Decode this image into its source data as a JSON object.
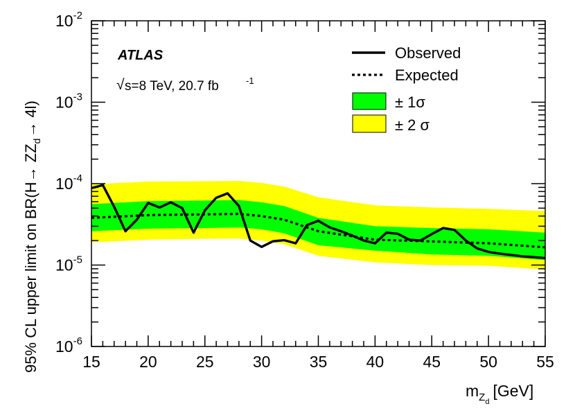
{
  "chart_data": {
    "type": "line",
    "experiment": "ATLAS",
    "energy_label": "s=8 TeV, 20.7 fb",
    "energy_label_exponent": "-1",
    "xlabel": "m",
    "xlabel_sub": "Z",
    "xlabel_subsub": "d",
    "xlabel_unit": "[GeV]",
    "ylabel": "95% CL upper limit on BR(H→ ZZ",
    "ylabel_sub": "d",
    "ylabel_tail": "→ 4l)",
    "xlim": [
      15,
      55
    ],
    "ylim": [
      1e-06,
      0.01
    ],
    "yscale": "log",
    "xticks": [
      "15",
      "20",
      "25",
      "30",
      "35",
      "40",
      "45",
      "50",
      "55"
    ],
    "yticks": [
      {
        "base": "10",
        "exp": "-6"
      },
      {
        "base": "10",
        "exp": "-5"
      },
      {
        "base": "10",
        "exp": "-4"
      },
      {
        "base": "10",
        "exp": "-3"
      },
      {
        "base": "10",
        "exp": "-2"
      }
    ],
    "legend": {
      "position": "top-right",
      "observed": "Observed",
      "expected": "Expected",
      "sigma1": "± 1σ",
      "sigma2": "± 2 σ"
    },
    "colors": {
      "sigma1": "#00ff00",
      "sigma2": "#ffff00",
      "line": "#000000"
    },
    "series": [
      {
        "name": "Observed",
        "x": [
          15,
          16,
          17,
          18,
          19,
          20,
          21,
          22,
          23,
          24,
          25,
          26,
          27,
          28,
          29,
          30,
          31,
          32,
          33,
          34,
          35,
          36,
          37,
          38,
          39,
          40,
          41,
          42,
          43,
          44,
          45,
          46,
          47,
          48,
          49,
          50,
          51,
          52,
          53,
          54,
          55
        ],
        "values": [
          8.8e-05,
          9.6e-05,
          5.2e-05,
          2.6e-05,
          3.6e-05,
          5.8e-05,
          5.1e-05,
          5.9e-05,
          5e-05,
          2.5e-05,
          4.7e-05,
          6.7e-05,
          7.6e-05,
          5.3e-05,
          2e-05,
          1.67e-05,
          1.96e-05,
          2.02e-05,
          1.85e-05,
          3.1e-05,
          3.5e-05,
          2.9e-05,
          2.6e-05,
          2.3e-05,
          2e-05,
          1.85e-05,
          2.5e-05,
          2.42e-05,
          2.05e-05,
          2e-05,
          2.4e-05,
          2.85e-05,
          2.7e-05,
          2e-05,
          1.6e-05,
          1.45e-05,
          1.38e-05,
          1.33e-05,
          1.28e-05,
          1.25e-05,
          1.22e-05
        ]
      },
      {
        "name": "Expected",
        "x": [
          15,
          20,
          25,
          28,
          30,
          32,
          35,
          40,
          45,
          50,
          55
        ],
        "values": [
          3.8e-05,
          4.1e-05,
          4.2e-05,
          4.25e-05,
          4e-05,
          3.6e-05,
          2.6e-05,
          2.05e-05,
          1.95e-05,
          1.85e-05,
          1.65e-05
        ]
      }
    ],
    "band_x": [
      15,
      20,
      25,
      28,
      30,
      32,
      35,
      40,
      45,
      50,
      55
    ],
    "band_1sigma_low": [
      2.6e-05,
      2.8e-05,
      2.85e-05,
      2.9e-05,
      2.75e-05,
      2.45e-05,
      1.75e-05,
      1.5e-05,
      1.35e-05,
      1.3e-05,
      1.15e-05
    ],
    "band_1sigma_high": [
      5.6e-05,
      6.1e-05,
      6.2e-05,
      6.3e-05,
      5.9e-05,
      5.3e-05,
      3.8e-05,
      3e-05,
      2.85e-05,
      2.75e-05,
      2.5e-05
    ],
    "band_2sigma_low": [
      1.9e-05,
      2.05e-05,
      2.1e-05,
      2.12e-05,
      2e-05,
      1.8e-05,
      1.3e-05,
      1.08e-05,
      1e-05,
      9.8e-06,
      8.8e-06
    ],
    "band_2sigma_high": [
      9.8e-05,
      0.000106,
      0.000107,
      0.000108,
      0.000102,
      9.2e-05,
      6.8e-05,
      5.4e-05,
      5.1e-05,
      4.9e-05,
      4.6e-05
    ]
  }
}
